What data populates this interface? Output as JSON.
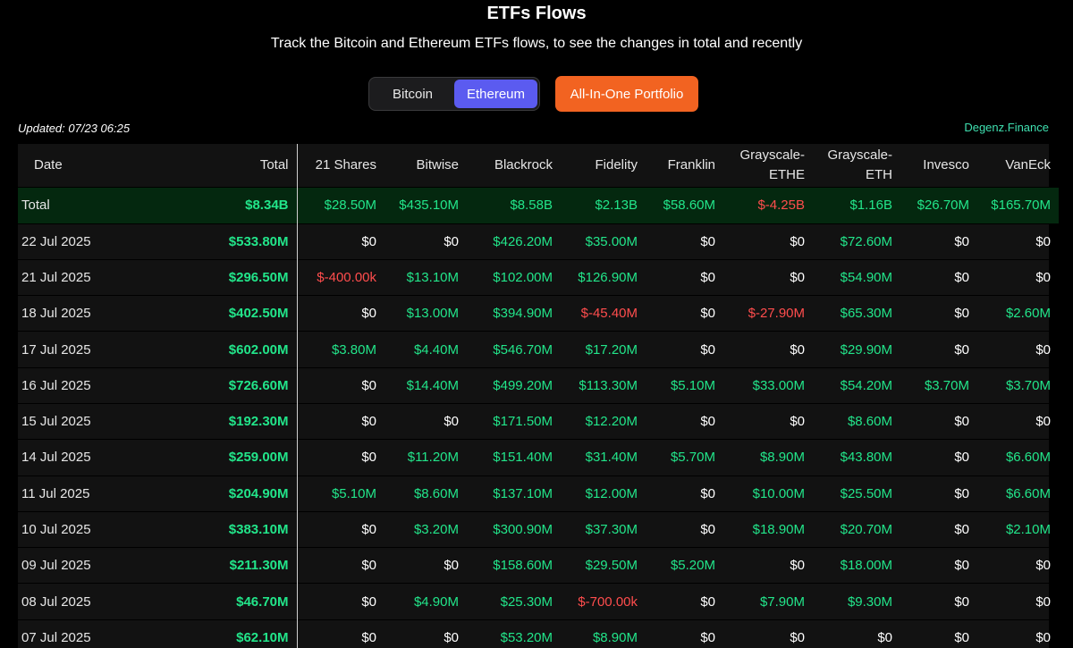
{
  "header": {
    "title": "ETFs Flows",
    "subtitle": "Track the Bitcoin and Ethereum ETFs flows, to see the changes in total and recently"
  },
  "tabs": [
    {
      "label": "Bitcoin",
      "active": false
    },
    {
      "label": "Ethereum",
      "active": true
    }
  ],
  "portfolio_button": "All-In-One Portfolio",
  "updated": "Updated: 07/23 06:25",
  "brand": "Degenz.Finance",
  "colors": {
    "positive": "#22e58a",
    "negative": "#ff4d4d",
    "accent": "#5b5bf0",
    "orange": "#f26321",
    "brand": "#3fe0b0"
  },
  "table": {
    "columns": [
      "Date",
      "Total",
      "21 Shares",
      "Bitwise",
      "Blackrock",
      "Fidelity",
      "Franklin",
      "Grayscale-ETHE",
      "Grayscale-ETH",
      "Invesco",
      "VanEck"
    ],
    "total_row": [
      "Total",
      "$8.34B",
      "$28.50M",
      "$435.10M",
      "$8.58B",
      "$2.13B",
      "$58.60M",
      "$-4.25B",
      "$1.16B",
      "$26.70M",
      "$165.70M"
    ],
    "rows": [
      [
        "22 Jul 2025",
        "$533.80M",
        "$0",
        "$0",
        "$426.20M",
        "$35.00M",
        "$0",
        "$0",
        "$72.60M",
        "$0",
        "$0"
      ],
      [
        "21 Jul 2025",
        "$296.50M",
        "$-400.00k",
        "$13.10M",
        "$102.00M",
        "$126.90M",
        "$0",
        "$0",
        "$54.90M",
        "$0",
        "$0"
      ],
      [
        "18 Jul 2025",
        "$402.50M",
        "$0",
        "$13.00M",
        "$394.90M",
        "$-45.40M",
        "$0",
        "$-27.90M",
        "$65.30M",
        "$0",
        "$2.60M"
      ],
      [
        "17 Jul 2025",
        "$602.00M",
        "$3.80M",
        "$4.40M",
        "$546.70M",
        "$17.20M",
        "$0",
        "$0",
        "$29.90M",
        "$0",
        "$0"
      ],
      [
        "16 Jul 2025",
        "$726.60M",
        "$0",
        "$14.40M",
        "$499.20M",
        "$113.30M",
        "$5.10M",
        "$33.00M",
        "$54.20M",
        "$3.70M",
        "$3.70M"
      ],
      [
        "15 Jul 2025",
        "$192.30M",
        "$0",
        "$0",
        "$171.50M",
        "$12.20M",
        "$0",
        "$0",
        "$8.60M",
        "$0",
        "$0"
      ],
      [
        "14 Jul 2025",
        "$259.00M",
        "$0",
        "$11.20M",
        "$151.40M",
        "$31.40M",
        "$5.70M",
        "$8.90M",
        "$43.80M",
        "$0",
        "$6.60M"
      ],
      [
        "11 Jul 2025",
        "$204.90M",
        "$5.10M",
        "$8.60M",
        "$137.10M",
        "$12.00M",
        "$0",
        "$10.00M",
        "$25.50M",
        "$0",
        "$6.60M"
      ],
      [
        "10 Jul 2025",
        "$383.10M",
        "$0",
        "$3.20M",
        "$300.90M",
        "$37.30M",
        "$0",
        "$18.90M",
        "$20.70M",
        "$0",
        "$2.10M"
      ],
      [
        "09 Jul 2025",
        "$211.30M",
        "$0",
        "$0",
        "$158.60M",
        "$29.50M",
        "$5.20M",
        "$0",
        "$18.00M",
        "$0",
        "$0"
      ],
      [
        "08 Jul 2025",
        "$46.70M",
        "$0",
        "$4.90M",
        "$25.30M",
        "$-700.00k",
        "$0",
        "$7.90M",
        "$9.30M",
        "$0",
        "$0"
      ],
      [
        "07 Jul 2025",
        "$62.10M",
        "$0",
        "$0",
        "$53.20M",
        "$8.90M",
        "$0",
        "$0",
        "$0",
        "$0",
        "$0"
      ]
    ]
  }
}
